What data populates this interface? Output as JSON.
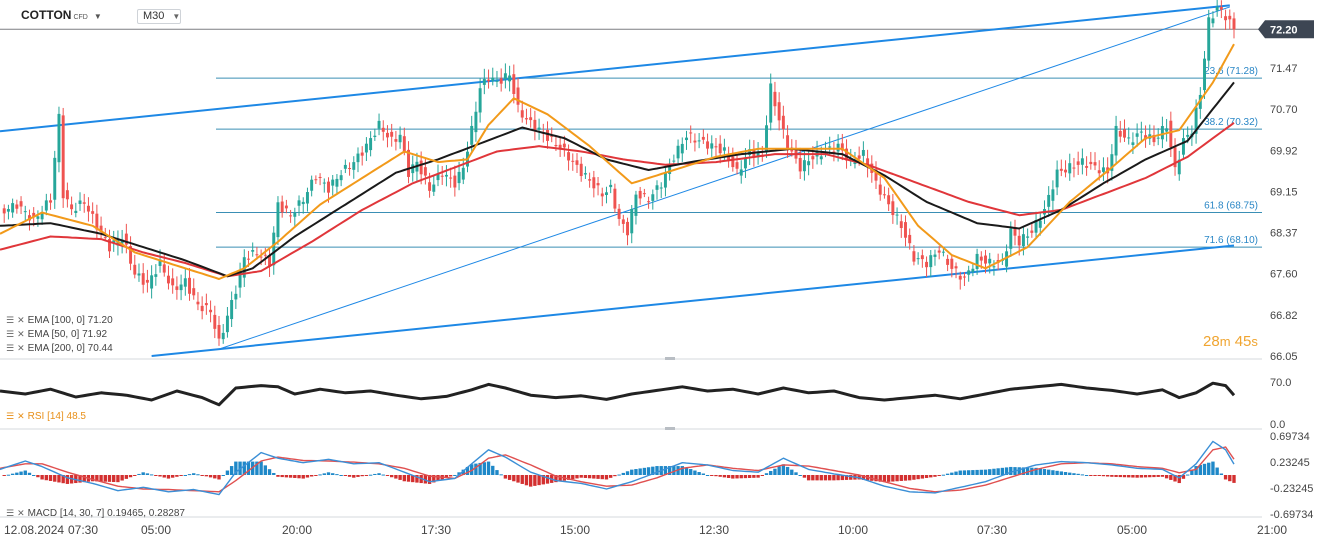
{
  "header": {
    "symbol": "COTTON",
    "symbol_type": "CFD",
    "timeframe": "M30"
  },
  "countdown": {
    "minutes": "28",
    "seconds": "45",
    "m_unit": "m",
    "s_unit": "s"
  },
  "colors": {
    "ema100": "#1a1a1a",
    "ema50": "#f29a1a",
    "ema200": "#e0363a",
    "trend": "#1e88e5",
    "fib": "#3a8fb5",
    "price_tag": "#3d4653",
    "up": "#26a69a",
    "down": "#ef5350",
    "macd_pos": "#1e88c8",
    "macd_neg": "#d32f2f"
  },
  "chart_data": {
    "type": "line",
    "instrument": "COTTON",
    "timeframe": "M30",
    "last_price": "72.20",
    "x_ticks": [
      "12.08.2024",
      "07:30",
      "05:00",
      "20:00",
      "17:30",
      "15:00",
      "12:30",
      "10:00",
      "07:30",
      "05:00",
      "21:00"
    ],
    "price_axis": {
      "range": [
        66.05,
        72.6
      ],
      "ticks": [
        "71.47",
        "70.70",
        "69.92",
        "69.15",
        "68.37",
        "67.60",
        "66.82",
        "66.05"
      ]
    },
    "fibonacci": [
      {
        "label": "23.6 (71.28)",
        "value": 71.28
      },
      {
        "label": "38.2 (70.32)",
        "value": 70.32
      },
      {
        "label": "61.8 (68.75)",
        "value": 68.75
      },
      {
        "label": "71.6 (68.10)",
        "value": 68.1
      }
    ],
    "legend": [
      {
        "label": "EMA [100, 0] 71.20",
        "color": "#1a1a1a"
      },
      {
        "label": "EMA [50, 0] 71.92",
        "color": "#f29a1a"
      },
      {
        "label": "EMA [200, 0] 70.44",
        "color": "#e0363a"
      }
    ],
    "price_path": [
      [
        0,
        68.75
      ],
      [
        4,
        68.9
      ],
      [
        8,
        68.6
      ],
      [
        12,
        69.0
      ],
      [
        14,
        70.55
      ],
      [
        15,
        69.1
      ],
      [
        17,
        68.8
      ],
      [
        20,
        68.95
      ],
      [
        23,
        68.5
      ],
      [
        26,
        68.1
      ],
      [
        29,
        68.3
      ],
      [
        32,
        67.6
      ],
      [
        35,
        67.4
      ],
      [
        38,
        67.8
      ],
      [
        41,
        67.3
      ],
      [
        44,
        67.45
      ],
      [
        47,
        67.0
      ],
      [
        50,
        66.9
      ],
      [
        52,
        66.3
      ],
      [
        54,
        66.8
      ],
      [
        56,
        67.3
      ],
      [
        58,
        67.9
      ],
      [
        61,
        68.0
      ],
      [
        64,
        67.8
      ],
      [
        66,
        68.9
      ],
      [
        69,
        68.7
      ],
      [
        72,
        69.0
      ],
      [
        75,
        69.45
      ],
      [
        78,
        69.2
      ],
      [
        81,
        69.5
      ],
      [
        84,
        69.7
      ],
      [
        87,
        70.0
      ],
      [
        90,
        70.4
      ],
      [
        93,
        70.1
      ],
      [
        95,
        70.2
      ],
      [
        97,
        69.5
      ],
      [
        99,
        69.7
      ],
      [
        102,
        69.2
      ],
      [
        105,
        69.5
      ],
      [
        108,
        69.3
      ],
      [
        110,
        69.6
      ],
      [
        112,
        70.3
      ],
      [
        114,
        71.1
      ],
      [
        116,
        71.3
      ],
      [
        118,
        71.2
      ],
      [
        121,
        71.35
      ],
      [
        123,
        70.7
      ],
      [
        125,
        70.5
      ],
      [
        128,
        70.3
      ],
      [
        131,
        70.1
      ],
      [
        134,
        69.9
      ],
      [
        137,
        69.6
      ],
      [
        140,
        69.35
      ],
      [
        143,
        69.1
      ],
      [
        145,
        69.2
      ],
      [
        147,
        68.6
      ],
      [
        149,
        68.4
      ],
      [
        151,
        69.1
      ],
      [
        154,
        69.0
      ],
      [
        157,
        69.3
      ],
      [
        160,
        69.8
      ],
      [
        163,
        70.2
      ],
      [
        166,
        70.1
      ],
      [
        169,
        70.0
      ],
      [
        172,
        69.9
      ],
      [
        175,
        69.5
      ],
      [
        178,
        69.9
      ],
      [
        181,
        69.8
      ],
      [
        183,
        71.1
      ],
      [
        185,
        70.5
      ],
      [
        187,
        70.0
      ],
      [
        190,
        69.6
      ],
      [
        193,
        69.8
      ],
      [
        196,
        69.9
      ],
      [
        199,
        70.0
      ],
      [
        202,
        69.7
      ],
      [
        205,
        69.85
      ],
      [
        208,
        69.3
      ],
      [
        211,
        68.9
      ],
      [
        214,
        68.5
      ],
      [
        217,
        67.9
      ],
      [
        220,
        67.8
      ],
      [
        223,
        68.05
      ],
      [
        226,
        67.7
      ],
      [
        229,
        67.5
      ],
      [
        232,
        67.9
      ],
      [
        235,
        67.8
      ],
      [
        238,
        67.8
      ],
      [
        240,
        68.4
      ],
      [
        242,
        68.2
      ],
      [
        245,
        68.4
      ],
      [
        248,
        68.8
      ],
      [
        251,
        69.5
      ],
      [
        254,
        69.6
      ],
      [
        257,
        69.7
      ],
      [
        260,
        69.6
      ],
      [
        263,
        69.5
      ],
      [
        265,
        70.3
      ],
      [
        268,
        70.1
      ],
      [
        271,
        70.25
      ],
      [
        274,
        70.1
      ],
      [
        277,
        70.4
      ],
      [
        279,
        69.55
      ],
      [
        281,
        70.1
      ],
      [
        283,
        70.3
      ],
      [
        285,
        71.0
      ],
      [
        287,
        72.35
      ],
      [
        289,
        72.6
      ],
      [
        291,
        72.45
      ],
      [
        293,
        72.2
      ]
    ],
    "ema50_path": [
      [
        0,
        68.35
      ],
      [
        10,
        68.75
      ],
      [
        22,
        68.5
      ],
      [
        32,
        68.0
      ],
      [
        42,
        67.75
      ],
      [
        52,
        67.5
      ],
      [
        58,
        67.7
      ],
      [
        66,
        68.2
      ],
      [
        76,
        68.9
      ],
      [
        86,
        69.4
      ],
      [
        96,
        69.9
      ],
      [
        104,
        69.7
      ],
      [
        111,
        69.75
      ],
      [
        116,
        70.4
      ],
      [
        122,
        70.9
      ],
      [
        130,
        70.6
      ],
      [
        140,
        70.0
      ],
      [
        150,
        69.3
      ],
      [
        160,
        69.55
      ],
      [
        170,
        69.8
      ],
      [
        180,
        69.95
      ],
      [
        190,
        69.95
      ],
      [
        200,
        69.95
      ],
      [
        210,
        69.4
      ],
      [
        218,
        68.5
      ],
      [
        226,
        67.95
      ],
      [
        234,
        67.7
      ],
      [
        244,
        68.1
      ],
      [
        254,
        68.95
      ],
      [
        264,
        69.6
      ],
      [
        272,
        70.15
      ],
      [
        280,
        70.3
      ],
      [
        288,
        71.2
      ],
      [
        293,
        71.92
      ]
    ],
    "ema100_path": [
      [
        0,
        68.5
      ],
      [
        12,
        68.55
      ],
      [
        24,
        68.35
      ],
      [
        34,
        68.1
      ],
      [
        44,
        67.85
      ],
      [
        54,
        67.55
      ],
      [
        60,
        67.7
      ],
      [
        70,
        68.3
      ],
      [
        82,
        68.9
      ],
      [
        94,
        69.5
      ],
      [
        104,
        69.75
      ],
      [
        114,
        70.05
      ],
      [
        124,
        70.35
      ],
      [
        134,
        70.15
      ],
      [
        144,
        69.75
      ],
      [
        154,
        69.55
      ],
      [
        164,
        69.7
      ],
      [
        176,
        69.85
      ],
      [
        188,
        69.95
      ],
      [
        200,
        69.85
      ],
      [
        210,
        69.45
      ],
      [
        220,
        68.95
      ],
      [
        232,
        68.55
      ],
      [
        242,
        68.45
      ],
      [
        252,
        68.8
      ],
      [
        262,
        69.3
      ],
      [
        272,
        69.75
      ],
      [
        282,
        70.1
      ],
      [
        293,
        71.2
      ]
    ],
    "ema200_path": [
      [
        0,
        68.05
      ],
      [
        12,
        68.3
      ],
      [
        24,
        68.25
      ],
      [
        34,
        68.0
      ],
      [
        44,
        67.8
      ],
      [
        54,
        67.55
      ],
      [
        62,
        67.65
      ],
      [
        74,
        68.2
      ],
      [
        86,
        68.8
      ],
      [
        98,
        69.3
      ],
      [
        108,
        69.6
      ],
      [
        118,
        69.9
      ],
      [
        128,
        70.0
      ],
      [
        138,
        69.9
      ],
      [
        148,
        69.75
      ],
      [
        158,
        69.65
      ],
      [
        170,
        69.7
      ],
      [
        184,
        69.85
      ],
      [
        196,
        69.85
      ],
      [
        206,
        69.65
      ],
      [
        218,
        69.3
      ],
      [
        230,
        68.95
      ],
      [
        242,
        68.7
      ],
      [
        252,
        68.8
      ],
      [
        262,
        69.1
      ],
      [
        272,
        69.4
      ],
      [
        282,
        69.8
      ],
      [
        293,
        70.44
      ]
    ],
    "rsi": {
      "label": "RSI [14] 48.5",
      "range": [
        0,
        100
      ],
      "ticks": [
        "70.0",
        "0.0"
      ],
      "path": [
        [
          0,
          55
        ],
        [
          6,
          50
        ],
        [
          12,
          58
        ],
        [
          18,
          45
        ],
        [
          24,
          52
        ],
        [
          30,
          48
        ],
        [
          36,
          40
        ],
        [
          42,
          55
        ],
        [
          48,
          44
        ],
        [
          52,
          32
        ],
        [
          56,
          60
        ],
        [
          62,
          64
        ],
        [
          66,
          62
        ],
        [
          70,
          50
        ],
        [
          76,
          58
        ],
        [
          82,
          52
        ],
        [
          88,
          55
        ],
        [
          94,
          48
        ],
        [
          100,
          42
        ],
        [
          106,
          46
        ],
        [
          112,
          57
        ],
        [
          116,
          66
        ],
        [
          120,
          60
        ],
        [
          126,
          48
        ],
        [
          132,
          44
        ],
        [
          138,
          47
        ],
        [
          144,
          41
        ],
        [
          150,
          50
        ],
        [
          156,
          56
        ],
        [
          162,
          62
        ],
        [
          168,
          55
        ],
        [
          174,
          58
        ],
        [
          180,
          50
        ],
        [
          186,
          60
        ],
        [
          192,
          52
        ],
        [
          198,
          55
        ],
        [
          204,
          44
        ],
        [
          210,
          40
        ],
        [
          216,
          44
        ],
        [
          222,
          48
        ],
        [
          228,
          42
        ],
        [
          234,
          50
        ],
        [
          240,
          58
        ],
        [
          246,
          62
        ],
        [
          252,
          66
        ],
        [
          258,
          60
        ],
        [
          264,
          56
        ],
        [
          270,
          50
        ],
        [
          276,
          57
        ],
        [
          280,
          44
        ],
        [
          284,
          52
        ],
        [
          288,
          68
        ],
        [
          291,
          64
        ],
        [
          293,
          48
        ]
      ]
    },
    "macd": {
      "label": "MACD [14, 30, 7] 0.19465, 0.28287",
      "ticks": [
        "0.69734",
        "0.23245",
        "-0.23245",
        "-0.69734"
      ],
      "range": [
        -0.69734,
        0.69734
      ],
      "macd_path": [
        [
          0,
          0.1
        ],
        [
          6,
          0.25
        ],
        [
          10,
          0.15
        ],
        [
          16,
          -0.05
        ],
        [
          22,
          -0.15
        ],
        [
          28,
          -0.28
        ],
        [
          34,
          -0.22
        ],
        [
          40,
          -0.3
        ],
        [
          46,
          -0.26
        ],
        [
          52,
          -0.35
        ],
        [
          56,
          0.05
        ],
        [
          62,
          0.4
        ],
        [
          66,
          0.3
        ],
        [
          72,
          0.22
        ],
        [
          78,
          0.28
        ],
        [
          84,
          0.2
        ],
        [
          90,
          0.22
        ],
        [
          96,
          0.05
        ],
        [
          102,
          -0.12
        ],
        [
          108,
          -0.06
        ],
        [
          112,
          0.2
        ],
        [
          116,
          0.45
        ],
        [
          120,
          0.32
        ],
        [
          126,
          0.05
        ],
        [
          132,
          -0.1
        ],
        [
          138,
          -0.15
        ],
        [
          144,
          -0.25
        ],
        [
          150,
          -0.12
        ],
        [
          156,
          0.05
        ],
        [
          162,
          0.22
        ],
        [
          168,
          0.18
        ],
        [
          174,
          0.08
        ],
        [
          180,
          0.05
        ],
        [
          186,
          0.3
        ],
        [
          192,
          0.1
        ],
        [
          198,
          0.02
        ],
        [
          204,
          -0.05
        ],
        [
          210,
          -0.2
        ],
        [
          216,
          -0.3
        ],
        [
          222,
          -0.32
        ],
        [
          228,
          -0.22
        ],
        [
          234,
          -0.12
        ],
        [
          240,
          0.05
        ],
        [
          246,
          0.18
        ],
        [
          252,
          0.24
        ],
        [
          258,
          0.22
        ],
        [
          264,
          0.18
        ],
        [
          270,
          0.12
        ],
        [
          276,
          0.1
        ],
        [
          280,
          -0.05
        ],
        [
          284,
          0.2
        ],
        [
          288,
          0.6
        ],
        [
          291,
          0.45
        ],
        [
          293,
          0.19465
        ]
      ],
      "signal_path": [
        [
          0,
          0.12
        ],
        [
          6,
          0.2
        ],
        [
          10,
          0.2
        ],
        [
          16,
          0.05
        ],
        [
          22,
          -0.08
        ],
        [
          28,
          -0.2
        ],
        [
          34,
          -0.25
        ],
        [
          40,
          -0.26
        ],
        [
          46,
          -0.28
        ],
        [
          52,
          -0.3
        ],
        [
          56,
          -0.1
        ],
        [
          62,
          0.25
        ],
        [
          66,
          0.32
        ],
        [
          72,
          0.26
        ],
        [
          78,
          0.25
        ],
        [
          84,
          0.23
        ],
        [
          90,
          0.2
        ],
        [
          96,
          0.12
        ],
        [
          102,
          -0.02
        ],
        [
          108,
          -0.06
        ],
        [
          112,
          0.08
        ],
        [
          116,
          0.3
        ],
        [
          120,
          0.36
        ],
        [
          126,
          0.18
        ],
        [
          132,
          -0.02
        ],
        [
          138,
          -0.12
        ],
        [
          144,
          -0.2
        ],
        [
          150,
          -0.18
        ],
        [
          156,
          -0.05
        ],
        [
          162,
          0.12
        ],
        [
          168,
          0.18
        ],
        [
          174,
          0.12
        ],
        [
          180,
          0.08
        ],
        [
          186,
          0.18
        ],
        [
          192,
          0.16
        ],
        [
          198,
          0.08
        ],
        [
          204,
          0.0
        ],
        [
          210,
          -0.12
        ],
        [
          216,
          -0.24
        ],
        [
          222,
          -0.3
        ],
        [
          228,
          -0.27
        ],
        [
          234,
          -0.18
        ],
        [
          240,
          -0.04
        ],
        [
          246,
          0.1
        ],
        [
          252,
          0.2
        ],
        [
          258,
          0.22
        ],
        [
          264,
          0.2
        ],
        [
          270,
          0.15
        ],
        [
          276,
          0.12
        ],
        [
          280,
          0.04
        ],
        [
          284,
          0.1
        ],
        [
          288,
          0.45
        ],
        [
          291,
          0.5
        ],
        [
          293,
          0.28287
        ]
      ]
    }
  }
}
